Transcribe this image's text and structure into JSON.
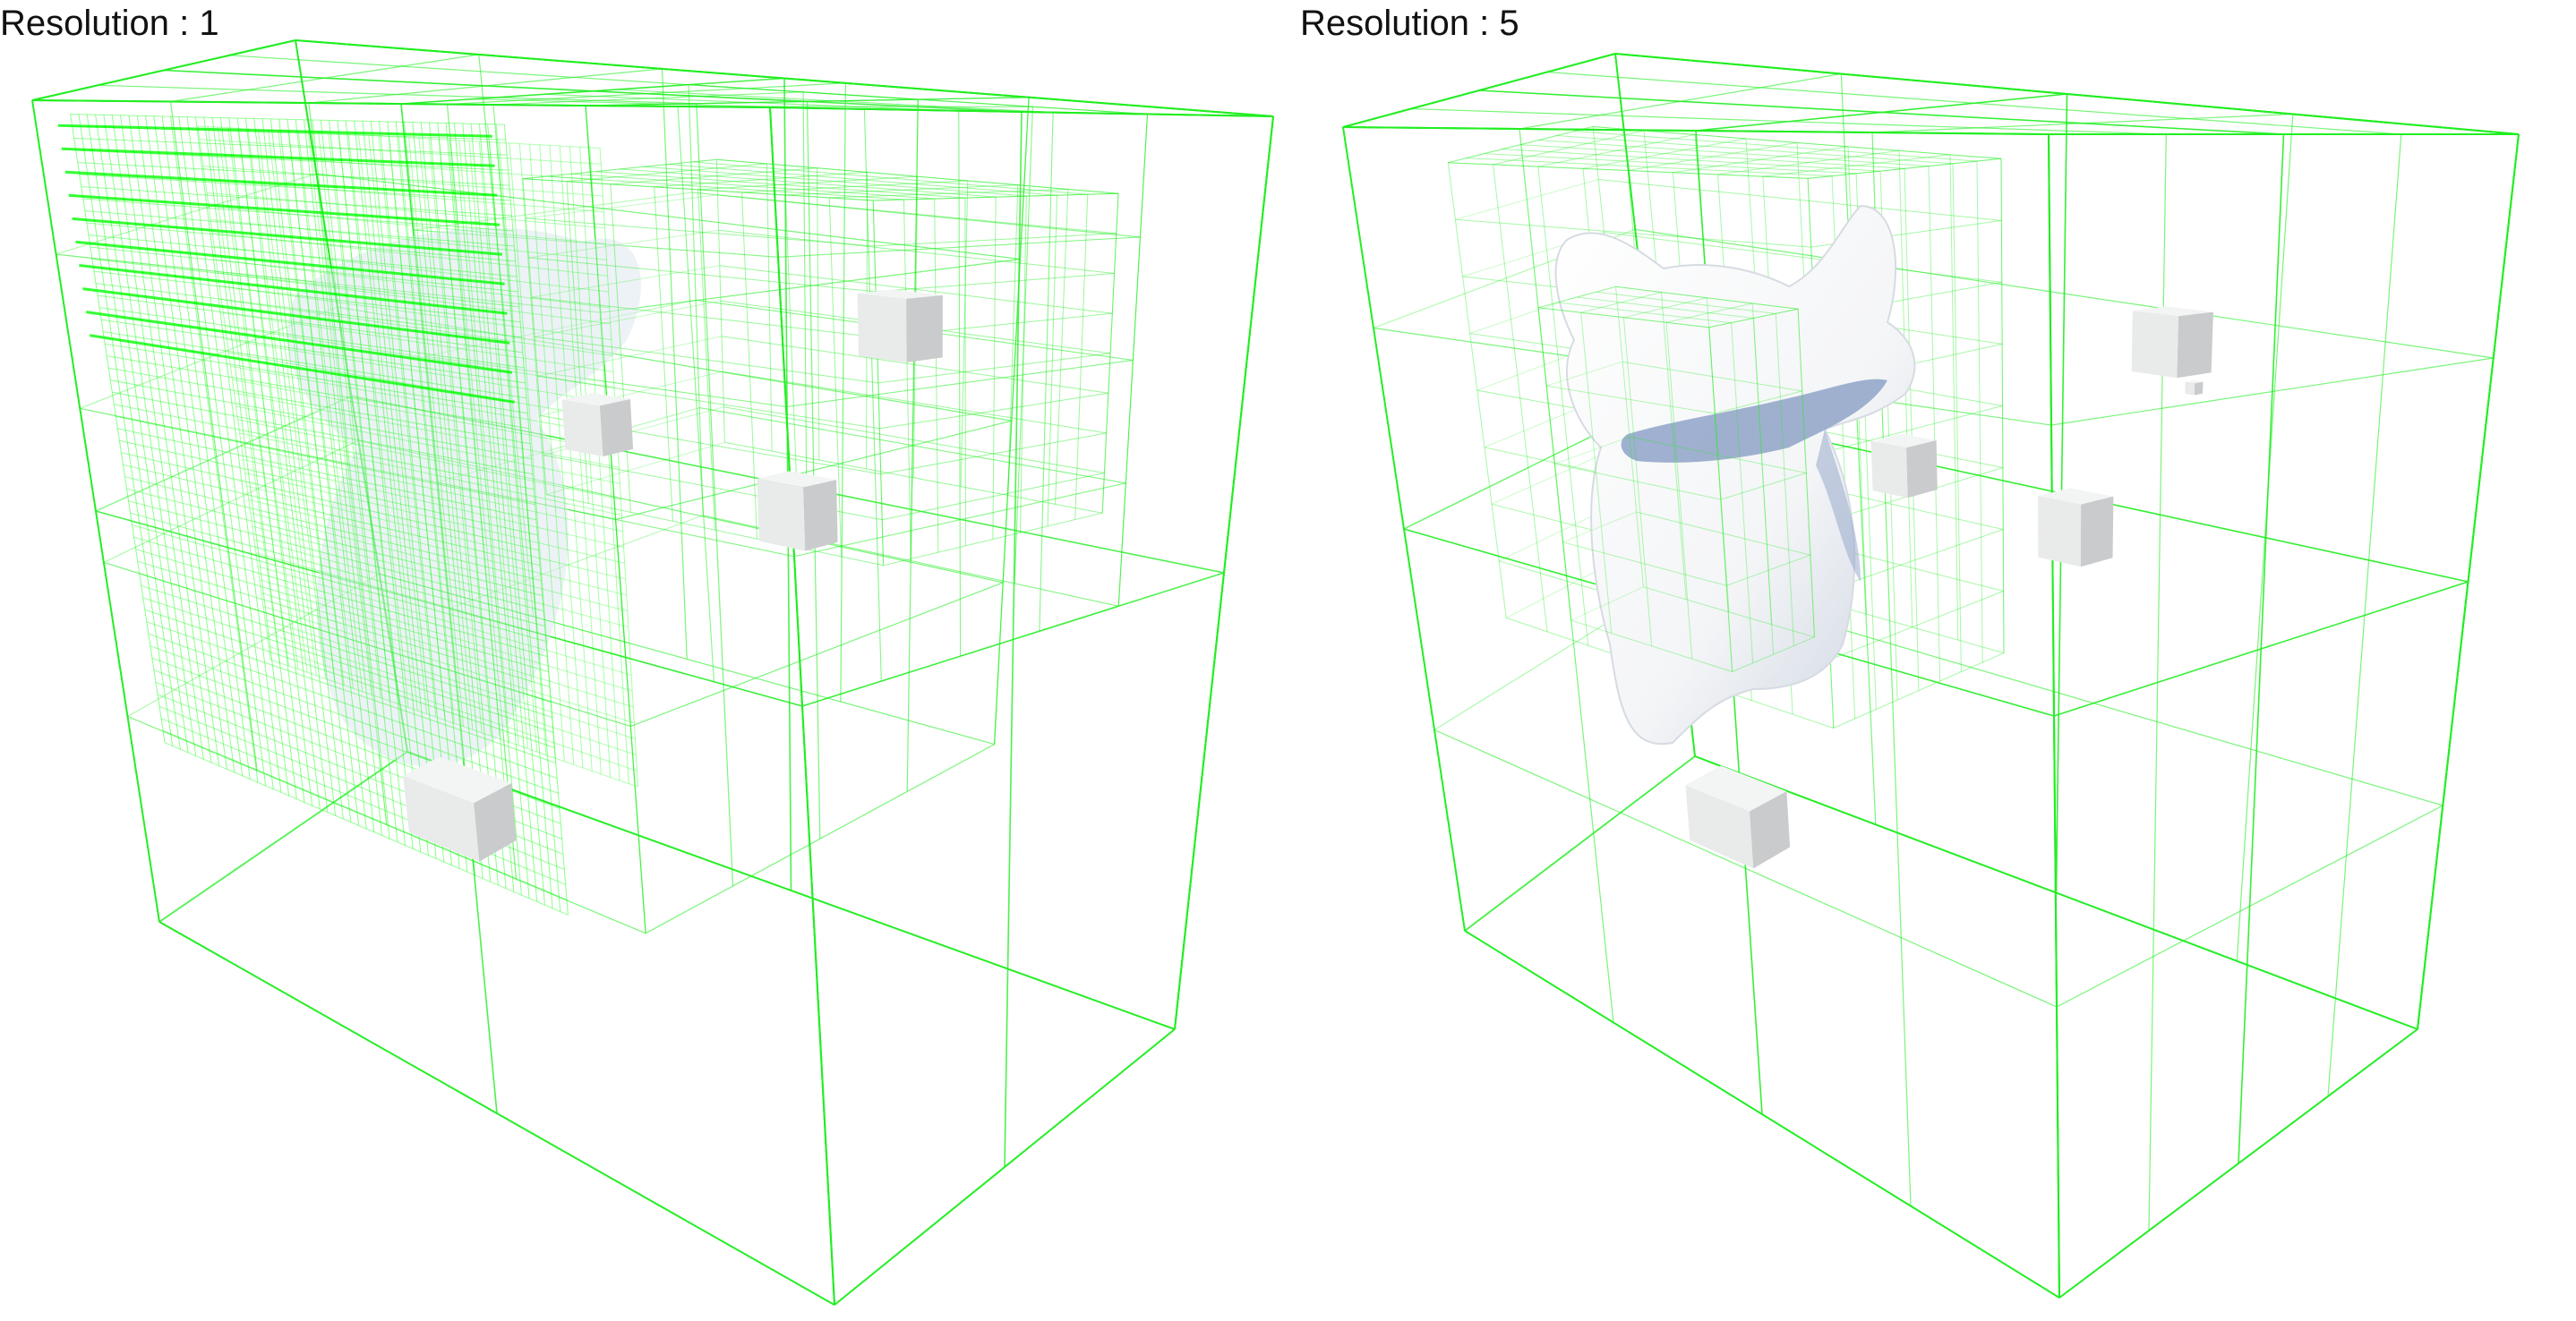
{
  "panels": [
    {
      "label": "Resolution : 1"
    },
    {
      "label": "Resolution : 5"
    }
  ],
  "colors": {
    "grid_line": "#22ee22",
    "dense_grid": "#00ff00",
    "object_fill": "#e9eaea",
    "object_shade": "#c9cbcc",
    "surface": "#f4f5f7",
    "surface_shadow": "#8fa3c8"
  }
}
